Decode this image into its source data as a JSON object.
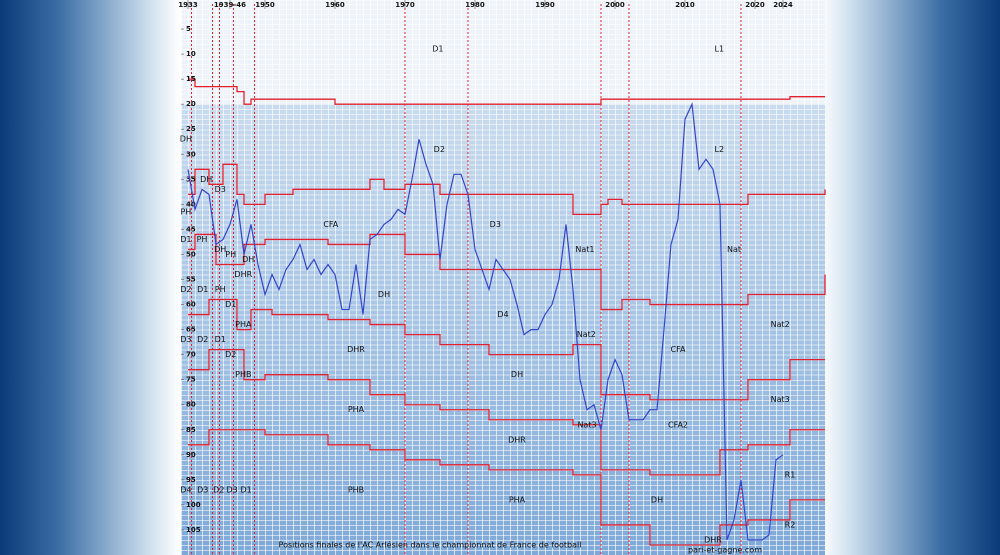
{
  "chart_data": {
    "type": "line",
    "footer": "Positions finales de l'AC Arlésien dans le championnat de France de football",
    "source": "pari-et-gagne.com",
    "xlim": [
      -1,
      91
    ],
    "ylim": [
      0,
      110
    ],
    "y_inverted": true,
    "xticks": [
      {
        "value": 0,
        "label": "1933"
      },
      {
        "value": 6,
        "label": "1939-46"
      },
      {
        "value": 11,
        "label": "1950"
      },
      {
        "value": 21,
        "label": "1960"
      },
      {
        "value": 31,
        "label": "1970"
      },
      {
        "value": 41,
        "label": "1980"
      },
      {
        "value": 51,
        "label": "1990"
      },
      {
        "value": 61,
        "label": "2000"
      },
      {
        "value": 71,
        "label": "2010"
      },
      {
        "value": 81,
        "label": "2020"
      },
      {
        "value": 85,
        "label": "2024"
      }
    ],
    "yticks": [
      5,
      10,
      15,
      20,
      25,
      30,
      35,
      40,
      45,
      50,
      55,
      60,
      65,
      70,
      75,
      80,
      85,
      90,
      95,
      100,
      105
    ],
    "series": [
      {
        "color": "#3545c8",
        "x": [
          0,
          1,
          2,
          3,
          4,
          5,
          6,
          7,
          8,
          9,
          10,
          11,
          12,
          13,
          14,
          15,
          16,
          17,
          18,
          19,
          20,
          21,
          22,
          23,
          24,
          25,
          26,
          27,
          28,
          29,
          30,
          31,
          32,
          33,
          34,
          35,
          36,
          37,
          38,
          39,
          40,
          41,
          42,
          43,
          44,
          45,
          46,
          47,
          48,
          49,
          50,
          51,
          52,
          53,
          54,
          55,
          56,
          57,
          58,
          59,
          60,
          61,
          62,
          63,
          64,
          65,
          66,
          67,
          68,
          69,
          70,
          71,
          72,
          73,
          74,
          75,
          76,
          77,
          78,
          79,
          80,
          81,
          82,
          83,
          84,
          85
        ],
        "values": [
          33,
          41,
          37,
          38,
          48,
          47,
          44,
          39,
          50,
          44,
          52,
          58,
          54,
          57,
          53,
          51,
          48,
          53,
          51,
          54,
          52,
          54,
          61,
          61,
          52,
          62,
          47,
          46,
          44,
          43,
          41,
          42,
          35,
          27,
          32,
          36,
          51,
          40,
          34,
          34,
          38,
          49,
          53,
          57,
          51,
          53,
          55,
          60,
          66,
          65,
          65,
          62,
          60,
          55,
          44,
          57,
          75,
          81,
          80,
          85,
          75,
          71,
          74,
          83,
          83,
          83,
          81,
          81,
          65,
          48,
          43,
          23,
          20,
          33,
          31,
          33,
          40,
          107,
          103,
          95,
          107,
          107,
          107,
          106,
          91,
          90
        ]
      }
    ],
    "boundaries": {
      "color": "#e3202c",
      "lines": [
        {
          "x": [
            0,
            1,
            7,
            8,
            9,
            21,
            59,
            86,
            91
          ],
          "values": [
            15,
            16.5,
            17.5,
            20,
            19,
            20,
            19,
            18.5,
            18.5
          ]
        },
        {
          "x": [
            0,
            1,
            3,
            5,
            7,
            8,
            11,
            15,
            25,
            26,
            28,
            31,
            36,
            55,
            59,
            60,
            62,
            76,
            80,
            91
          ],
          "values": [
            38,
            33,
            36,
            32,
            38,
            40,
            38,
            37,
            37,
            35,
            37,
            36,
            38,
            42,
            40,
            39,
            40,
            40,
            38,
            37
          ]
        },
        {
          "x": [
            0,
            1,
            4,
            8,
            11,
            20,
            26,
            31,
            36,
            55,
            59,
            62,
            66,
            76,
            80,
            91
          ],
          "values": [
            49,
            46,
            52,
            48,
            47,
            48,
            46,
            50,
            53,
            53,
            61,
            59,
            60,
            60,
            58,
            54
          ]
        },
        {
          "x": [
            0,
            3,
            7,
            9,
            12,
            20,
            26,
            31,
            36,
            43,
            55,
            59,
            66,
            76,
            80,
            86,
            91
          ],
          "values": [
            62,
            59,
            65,
            61,
            62,
            63,
            64,
            66,
            68,
            70,
            68,
            78,
            79,
            79,
            75,
            71,
            71
          ]
        },
        {
          "x": [
            0,
            3,
            8,
            11,
            20,
            26,
            31,
            36,
            43,
            55,
            59,
            66,
            76,
            80,
            86,
            91
          ],
          "values": [
            73,
            69,
            75,
            74,
            75,
            78,
            80,
            81,
            83,
            84,
            93,
            94,
            89,
            88,
            85,
            85
          ]
        },
        {
          "x": [
            0,
            3,
            8,
            11,
            20,
            26,
            31,
            36,
            43,
            55,
            59,
            66,
            76,
            80,
            86,
            91
          ],
          "values": [
            88,
            85,
            85,
            86,
            88,
            89,
            91,
            92,
            93,
            94,
            104,
            108,
            104,
            103,
            99,
            99
          ]
        }
      ],
      "reforms": [
        0.5,
        3.5,
        4.5,
        6.5,
        9.5,
        31,
        40,
        59,
        63,
        79
      ]
    },
    "annotations": [
      {
        "text": "D1",
        "x": 35.7,
        "y": 9
      },
      {
        "text": "L1",
        "x": 75.9,
        "y": 9
      },
      {
        "text": "D2",
        "x": 35.9,
        "y": 29
      },
      {
        "text": "L2",
        "x": 75.9,
        "y": 29
      },
      {
        "text": "CFA",
        "x": 20.4,
        "y": 44
      },
      {
        "text": "D3",
        "x": 43.9,
        "y": 44
      },
      {
        "text": "Nat1",
        "x": 56.7,
        "y": 49
      },
      {
        "text": "Nat",
        "x": 78,
        "y": 49
      },
      {
        "text": "DH",
        "x": 28,
        "y": 58
      },
      {
        "text": "D4",
        "x": 45,
        "y": 62
      },
      {
        "text": "Nat2",
        "x": 56.9,
        "y": 66
      },
      {
        "text": "Nat2",
        "x": 84.6,
        "y": 64
      },
      {
        "text": "DHR",
        "x": 24,
        "y": 69
      },
      {
        "text": "CFA",
        "x": 70,
        "y": 69
      },
      {
        "text": "DH",
        "x": 47,
        "y": 74
      },
      {
        "text": "PHA",
        "x": 24,
        "y": 81
      },
      {
        "text": "Nat3",
        "x": 57,
        "y": 84
      },
      {
        "text": "CFA2",
        "x": 70,
        "y": 84
      },
      {
        "text": "Nat3",
        "x": 84.6,
        "y": 79
      },
      {
        "text": "DHR",
        "x": 47,
        "y": 87
      },
      {
        "text": "R1",
        "x": 86,
        "y": 94
      },
      {
        "text": "PHB",
        "x": 24,
        "y": 97
      },
      {
        "text": "PHA",
        "x": 47,
        "y": 99
      },
      {
        "text": "DH",
        "x": 67,
        "y": 99
      },
      {
        "text": "R2",
        "x": 86,
        "y": 104
      },
      {
        "text": "DHR",
        "x": 75,
        "y": 107
      },
      {
        "text": "DH",
        "x": -0.3,
        "y": 27
      },
      {
        "text": "DH",
        "x": 2.6,
        "y": 35
      },
      {
        "text": "D3",
        "x": 4.6,
        "y": 37
      },
      {
        "text": "PH",
        "x": -0.3,
        "y": 41.5
      },
      {
        "text": "D1",
        "x": -0.3,
        "y": 47
      },
      {
        "text": "PH",
        "x": 2,
        "y": 47
      },
      {
        "text": "DH",
        "x": 4.6,
        "y": 49
      },
      {
        "text": "PH",
        "x": 6.1,
        "y": 50
      },
      {
        "text": "DH",
        "x": 8.6,
        "y": 51
      },
      {
        "text": "DHR",
        "x": 7.9,
        "y": 54
      },
      {
        "text": "D2",
        "x": -0.3,
        "y": 57
      },
      {
        "text": "D1",
        "x": 2.1,
        "y": 57
      },
      {
        "text": "PH",
        "x": 4.6,
        "y": 57
      },
      {
        "text": "D1",
        "x": 6.1,
        "y": 60
      },
      {
        "text": "PHA",
        "x": 7.9,
        "y": 64
      },
      {
        "text": "D3",
        "x": -0.3,
        "y": 67
      },
      {
        "text": "D2",
        "x": 2.1,
        "y": 67
      },
      {
        "text": "D1",
        "x": 4.6,
        "y": 67
      },
      {
        "text": "D2",
        "x": 6.1,
        "y": 70
      },
      {
        "text": "PHB",
        "x": 7.9,
        "y": 74
      },
      {
        "text": "D4",
        "x": -0.3,
        "y": 97
      },
      {
        "text": "D3",
        "x": 2.1,
        "y": 97
      },
      {
        "text": "D2",
        "x": 4.4,
        "y": 97
      },
      {
        "text": "D3",
        "x": 6.3,
        "y": 97
      },
      {
        "text": "D1",
        "x": 8.3,
        "y": 97
      }
    ]
  }
}
